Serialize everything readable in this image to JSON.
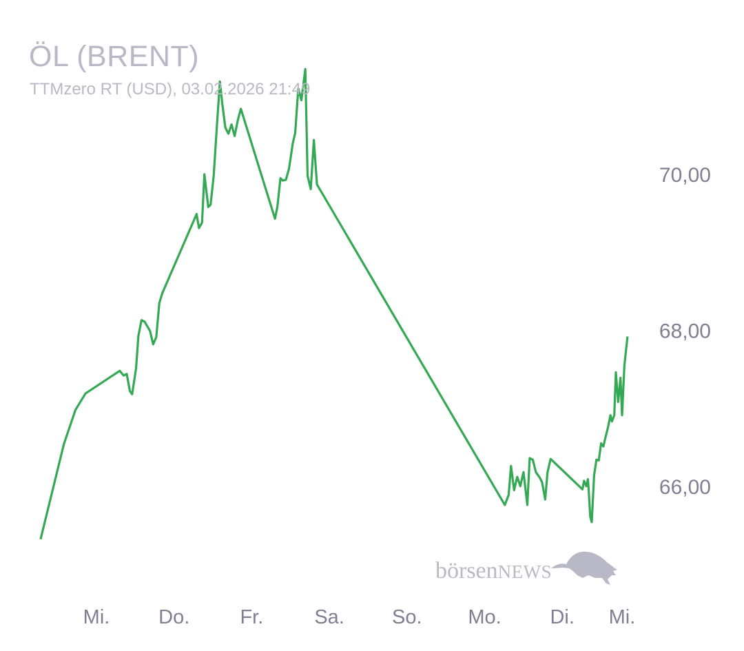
{
  "chart_data": {
    "type": "line",
    "title": "ÖL (BRENT)",
    "subtitle": "TTMzero RT (USD), 03.02.2026 21:49",
    "line_color": "#34a853",
    "label_color": "#7f7e92",
    "title_color": "#b9b8c6",
    "ylim": [
      65.0,
      71.6
    ],
    "yticks": [
      {
        "value": 70,
        "label": "70,00"
      },
      {
        "value": 68,
        "label": "68,00"
      },
      {
        "value": 66,
        "label": "66,00"
      }
    ],
    "xticks": [
      {
        "day": 0,
        "label": "Mi."
      },
      {
        "day": 1,
        "label": "Do."
      },
      {
        "day": 2,
        "label": "Fr."
      },
      {
        "day": 3,
        "label": "Sa."
      },
      {
        "day": 4,
        "label": "So."
      },
      {
        "day": 5,
        "label": "Mo."
      },
      {
        "day": 6,
        "label": "Di."
      },
      {
        "day": 6.77,
        "label": "Mi."
      }
    ],
    "grid": false,
    "points": [
      [
        -0.72,
        65.32
      ],
      [
        -0.42,
        66.54
      ],
      [
        -0.27,
        66.98
      ],
      [
        -0.14,
        67.19
      ],
      [
        0.3,
        67.48
      ],
      [
        0.35,
        67.42
      ],
      [
        0.39,
        67.44
      ],
      [
        0.43,
        67.22
      ],
      [
        0.46,
        67.18
      ],
      [
        0.51,
        67.51
      ],
      [
        0.54,
        67.93
      ],
      [
        0.58,
        68.13
      ],
      [
        0.62,
        68.11
      ],
      [
        0.69,
        67.99
      ],
      [
        0.73,
        67.82
      ],
      [
        0.77,
        67.91
      ],
      [
        0.81,
        68.35
      ],
      [
        0.85,
        68.48
      ],
      [
        1.29,
        69.49
      ],
      [
        1.32,
        69.31
      ],
      [
        1.36,
        69.38
      ],
      [
        1.39,
        70.0
      ],
      [
        1.44,
        69.58
      ],
      [
        1.47,
        69.61
      ],
      [
        1.51,
        69.98
      ],
      [
        1.55,
        70.6
      ],
      [
        1.59,
        71.19
      ],
      [
        1.62,
        70.91
      ],
      [
        1.66,
        70.6
      ],
      [
        1.7,
        70.52
      ],
      [
        1.74,
        70.64
      ],
      [
        1.78,
        70.49
      ],
      [
        1.82,
        70.69
      ],
      [
        1.86,
        70.84
      ],
      [
        2.3,
        69.43
      ],
      [
        2.33,
        69.58
      ],
      [
        2.37,
        69.95
      ],
      [
        2.4,
        69.92
      ],
      [
        2.44,
        69.93
      ],
      [
        2.48,
        70.07
      ],
      [
        2.53,
        70.4
      ],
      [
        2.56,
        70.53
      ],
      [
        2.6,
        71.1
      ],
      [
        2.64,
        70.95
      ],
      [
        2.69,
        71.35
      ],
      [
        2.72,
        69.98
      ],
      [
        2.76,
        69.81
      ],
      [
        2.8,
        70.44
      ],
      [
        2.84,
        69.87
      ],
      [
        5.26,
        65.76
      ],
      [
        5.31,
        65.89
      ],
      [
        5.34,
        66.26
      ],
      [
        5.38,
        65.95
      ],
      [
        5.42,
        66.12
      ],
      [
        5.46,
        66.0
      ],
      [
        5.5,
        66.18
      ],
      [
        5.55,
        65.76
      ],
      [
        5.58,
        66.36
      ],
      [
        5.62,
        66.34
      ],
      [
        5.66,
        66.18
      ],
      [
        5.71,
        66.11
      ],
      [
        5.74,
        66.05
      ],
      [
        5.78,
        65.83
      ],
      [
        5.81,
        66.18
      ],
      [
        5.85,
        66.35
      ],
      [
        6.26,
        65.96
      ],
      [
        6.28,
        66.07
      ],
      [
        6.31,
        66.0
      ],
      [
        6.33,
        66.09
      ],
      [
        6.34,
        65.96
      ],
      [
        6.36,
        65.61
      ],
      [
        6.38,
        65.54
      ],
      [
        6.41,
        66.14
      ],
      [
        6.44,
        66.34
      ],
      [
        6.47,
        66.33
      ],
      [
        6.5,
        66.55
      ],
      [
        6.53,
        66.51
      ],
      [
        6.55,
        66.6
      ],
      [
        6.59,
        66.76
      ],
      [
        6.62,
        66.91
      ],
      [
        6.64,
        66.83
      ],
      [
        6.67,
        66.91
      ],
      [
        6.69,
        67.46
      ],
      [
        6.72,
        67.08
      ],
      [
        6.75,
        67.39
      ],
      [
        6.77,
        66.91
      ],
      [
        6.8,
        67.55
      ],
      [
        6.84,
        67.92
      ]
    ]
  },
  "logo": {
    "text_lower": "börsen",
    "text_caps": "NEWS",
    "icon": "bull-icon"
  }
}
